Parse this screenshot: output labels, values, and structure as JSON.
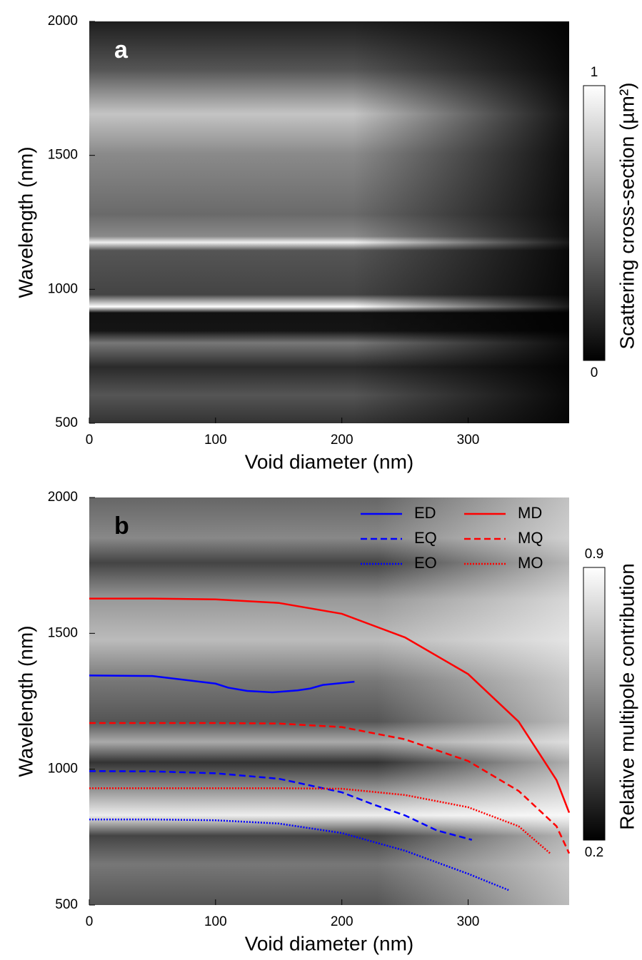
{
  "chart_data": [
    {
      "type": "heatmap",
      "panel_label": "a",
      "xlabel": "Void diameter (nm)",
      "ylabel": "Wavelength (nm)",
      "xlim": [
        0,
        380
      ],
      "ylim": [
        500,
        2000
      ],
      "xticks": [
        0,
        100,
        200,
        300
      ],
      "yticks": [
        500,
        1000,
        1500,
        2000
      ],
      "colorbar": {
        "label": "Scattering cross-section (µm²)",
        "lim": [
          0,
          1
        ],
        "ticks": [
          0,
          1
        ]
      }
    },
    {
      "type": "heatmap",
      "panel_label": "b",
      "xlabel": "Void diameter (nm)",
      "ylabel": "Wavelength (nm)",
      "xlim": [
        0,
        380
      ],
      "ylim": [
        500,
        2000
      ],
      "xticks": [
        0,
        100,
        200,
        300
      ],
      "yticks": [
        500,
        1000,
        1500,
        2000
      ],
      "colorbar": {
        "label": "Relative multipole contribution",
        "lim": [
          0.2,
          0.9
        ],
        "ticks": [
          0.2,
          0.9
        ]
      },
      "series": [
        {
          "name": "ED",
          "color": "#0000ff",
          "dash": "solid",
          "x": [
            0,
            50,
            100,
            110,
            125,
            145,
            165,
            175,
            185,
            210
          ],
          "values": [
            1345,
            1343,
            1315,
            1300,
            1288,
            1283,
            1290,
            1297,
            1310,
            1322
          ]
        },
        {
          "name": "EQ",
          "color": "#0000ff",
          "dash": "dashed",
          "x": [
            0,
            50,
            100,
            150,
            200,
            225,
            250,
            275,
            303
          ],
          "values": [
            993,
            992,
            985,
            965,
            915,
            870,
            830,
            775,
            740
          ]
        },
        {
          "name": "EO",
          "color": "#0000ff",
          "dash": "dotted",
          "x": [
            0,
            50,
            100,
            150,
            200,
            250,
            300,
            332
          ],
          "values": [
            815,
            815,
            812,
            800,
            765,
            700,
            615,
            555
          ]
        },
        {
          "name": "MD",
          "color": "#ff0000",
          "dash": "solid",
          "x": [
            0,
            50,
            100,
            150,
            200,
            250,
            300,
            340,
            370,
            380
          ],
          "values": [
            1628,
            1628,
            1625,
            1612,
            1572,
            1485,
            1350,
            1175,
            960,
            840
          ]
        },
        {
          "name": "MQ",
          "color": "#ff0000",
          "dash": "dashed",
          "x": [
            0,
            100,
            150,
            200,
            250,
            300,
            340,
            370,
            380
          ],
          "values": [
            1170,
            1170,
            1168,
            1155,
            1110,
            1030,
            920,
            790,
            690
          ]
        },
        {
          "name": "MO",
          "color": "#ff0000",
          "dash": "dotted",
          "x": [
            0,
            100,
            150,
            200,
            250,
            300,
            340,
            365
          ],
          "values": [
            930,
            930,
            930,
            928,
            905,
            860,
            790,
            690
          ]
        }
      ]
    }
  ]
}
